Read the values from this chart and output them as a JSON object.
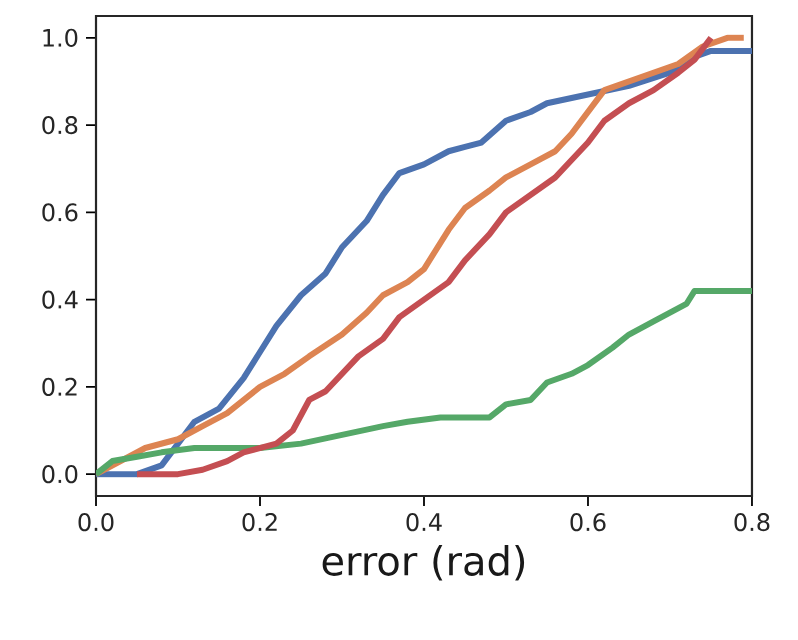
{
  "chart_data": {
    "type": "line",
    "xlabel": "error (rad)",
    "xlim": [
      0,
      0.8
    ],
    "ylim": [
      -0.05,
      1.05
    ],
    "xticks": [
      {
        "value": 0,
        "label": "0.0"
      },
      {
        "value": 0.2,
        "label": "0.2"
      },
      {
        "value": 0.4,
        "label": "0.4"
      },
      {
        "value": 0.6,
        "label": "0.6"
      },
      {
        "value": 0.8,
        "label": "0.8"
      }
    ],
    "yticks": [
      {
        "value": 0,
        "label": "0.0"
      },
      {
        "value": 0.2,
        "label": "0.2"
      },
      {
        "value": 0.4,
        "label": "0.4"
      },
      {
        "value": 0.6,
        "label": "0.6"
      },
      {
        "value": 0.8,
        "label": "0.8"
      },
      {
        "value": 1,
        "label": "1.0"
      }
    ],
    "marker": "none",
    "line_style": "solid",
    "series": [
      {
        "color": "#4c72b0",
        "x": [
          0,
          0.05,
          0.08,
          0.1,
          0.12,
          0.15,
          0.18,
          0.2,
          0.22,
          0.25,
          0.28,
          0.3,
          0.33,
          0.35,
          0.37,
          0.4,
          0.43,
          0.45,
          0.47,
          0.5,
          0.53,
          0.55,
          0.6,
          0.65,
          0.7,
          0.72,
          0.75,
          0.8
        ],
        "values": [
          0,
          0,
          0.02,
          0.07,
          0.12,
          0.15,
          0.22,
          0.28,
          0.34,
          0.41,
          0.46,
          0.52,
          0.58,
          0.64,
          0.69,
          0.71,
          0.74,
          0.75,
          0.76,
          0.81,
          0.83,
          0.85,
          0.87,
          0.89,
          0.92,
          0.95,
          0.97,
          0.97
        ]
      },
      {
        "color": "#dd8452",
        "x": [
          0,
          0.03,
          0.06,
          0.1,
          0.13,
          0.16,
          0.2,
          0.23,
          0.26,
          0.3,
          0.33,
          0.35,
          0.38,
          0.4,
          0.43,
          0.45,
          0.48,
          0.5,
          0.53,
          0.56,
          0.58,
          0.6,
          0.62,
          0.65,
          0.68,
          0.71,
          0.74,
          0.77,
          0.79
        ],
        "values": [
          0,
          0.03,
          0.06,
          0.08,
          0.11,
          0.14,
          0.2,
          0.23,
          0.27,
          0.32,
          0.37,
          0.41,
          0.44,
          0.47,
          0.56,
          0.61,
          0.65,
          0.68,
          0.71,
          0.74,
          0.78,
          0.83,
          0.88,
          0.9,
          0.92,
          0.94,
          0.98,
          1.0,
          1.0
        ]
      },
      {
        "color": "#55a868",
        "x": [
          0,
          0.02,
          0.05,
          0.08,
          0.12,
          0.2,
          0.25,
          0.3,
          0.35,
          0.38,
          0.42,
          0.45,
          0.48,
          0.5,
          0.53,
          0.55,
          0.58,
          0.6,
          0.63,
          0.65,
          0.68,
          0.7,
          0.72,
          0.73,
          0.8
        ],
        "values": [
          0,
          0.03,
          0.04,
          0.05,
          0.06,
          0.06,
          0.07,
          0.09,
          0.11,
          0.12,
          0.13,
          0.13,
          0.13,
          0.16,
          0.17,
          0.21,
          0.23,
          0.25,
          0.29,
          0.32,
          0.35,
          0.37,
          0.39,
          0.42,
          0.42
        ]
      },
      {
        "color": "#c44e52",
        "x": [
          0.05,
          0.1,
          0.13,
          0.16,
          0.18,
          0.22,
          0.24,
          0.26,
          0.28,
          0.3,
          0.32,
          0.35,
          0.37,
          0.4,
          0.43,
          0.45,
          0.48,
          0.5,
          0.53,
          0.56,
          0.58,
          0.6,
          0.62,
          0.65,
          0.68,
          0.71,
          0.73,
          0.75
        ],
        "values": [
          0,
          0,
          0.01,
          0.03,
          0.05,
          0.07,
          0.1,
          0.17,
          0.19,
          0.23,
          0.27,
          0.31,
          0.36,
          0.4,
          0.44,
          0.49,
          0.55,
          0.6,
          0.64,
          0.68,
          0.72,
          0.76,
          0.81,
          0.85,
          0.88,
          0.92,
          0.95,
          1.0
        ]
      }
    ]
  }
}
